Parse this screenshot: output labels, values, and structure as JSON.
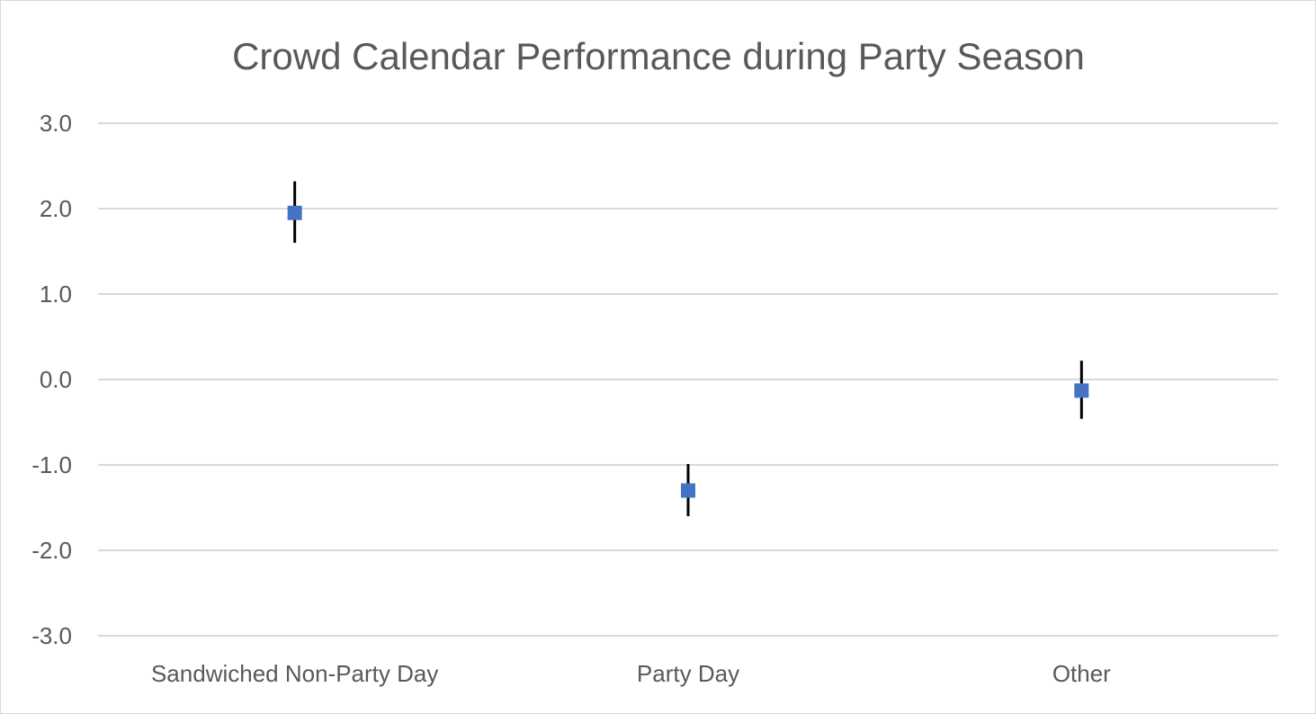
{
  "chart_data": {
    "type": "scatter",
    "title": "Crowd Calendar Performance during Party Season",
    "xlabel": "",
    "ylabel": "",
    "categories": [
      "Sandwiched Non-Party Day",
      "Party Day",
      "Other"
    ],
    "series": [
      {
        "values": [
          1.95,
          -1.3,
          -0.13
        ],
        "error_low": [
          1.6,
          -1.6,
          -0.46
        ],
        "error_high": [
          2.32,
          -0.99,
          0.22
        ],
        "marker": "square",
        "color": "#4472c4"
      }
    ],
    "ylim": [
      -3.0,
      3.0
    ],
    "yticks": [
      "3.0",
      "2.0",
      "1.0",
      "0.0",
      "-1.0",
      "-2.0",
      "-3.0"
    ],
    "grid": true,
    "legend": "none",
    "colors": {
      "marker": "#4472c4",
      "error_bar": "#000000",
      "grid": "#d9d9d9",
      "text": "#595959"
    }
  }
}
